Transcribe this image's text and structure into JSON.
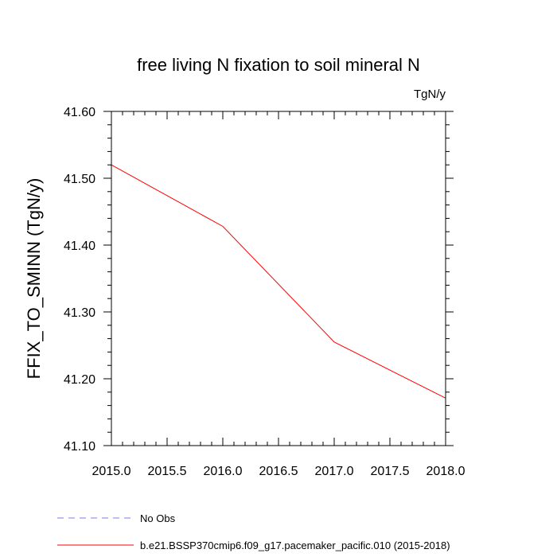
{
  "chart_data": {
    "type": "line",
    "title": "free living N fixation to soil mineral N",
    "units": "TgN/y",
    "xlabel": "",
    "ylabel": "FFIX_TO_SMINN  (TgN/y)",
    "xlim": [
      2015.0,
      2018.0
    ],
    "ylim": [
      41.1,
      41.6
    ],
    "xticks": [
      "2015.0",
      "2015.5",
      "2016.0",
      "2016.5",
      "2017.0",
      "2017.5",
      "2018.0"
    ],
    "yticks": [
      "41.10",
      "41.20",
      "41.30",
      "41.40",
      "41.50",
      "41.60"
    ],
    "series": [
      {
        "name": "No Obs",
        "color": "#7b7bf0",
        "dash": "dashed",
        "x": [],
        "y": []
      },
      {
        "name": "b.e21.BSSP370cmip6.f09_g17.pacemaker_pacific.010 (2015-2018)",
        "color": "#ff0000",
        "dash": "solid",
        "x": [
          2015.0,
          2016.0,
          2017.0,
          2018.0
        ],
        "y": [
          41.52,
          41.428,
          41.255,
          41.171
        ]
      }
    ],
    "legend_position": "bottom-left",
    "grid": false
  }
}
